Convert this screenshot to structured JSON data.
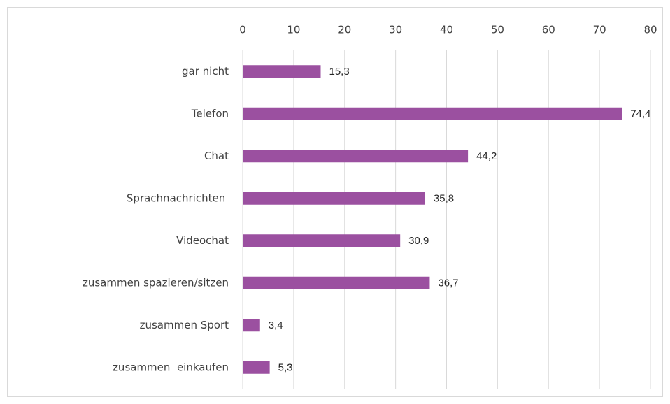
{
  "chart_data": {
    "type": "bar",
    "orientation": "horizontal",
    "categories": [
      "gar nicht",
      "Telefon",
      "Chat",
      "Sprachnachrichten ",
      "Videochat",
      "zusammen spazieren/sitzen",
      "zusammen Sport",
      "zusammen  einkaufen"
    ],
    "values": [
      15.3,
      74.4,
      44.2,
      35.8,
      30.9,
      36.7,
      3.4,
      5.3
    ],
    "value_labels": [
      "15,3",
      "74,4",
      "44,2",
      "35,8",
      "30,9",
      "36,7",
      "3,4",
      "5,3"
    ],
    "color": "#9b50a0",
    "xlim": [
      0,
      80
    ],
    "xticks": [
      0,
      10,
      20,
      30,
      40,
      50,
      60,
      70,
      80
    ],
    "grid": true
  }
}
